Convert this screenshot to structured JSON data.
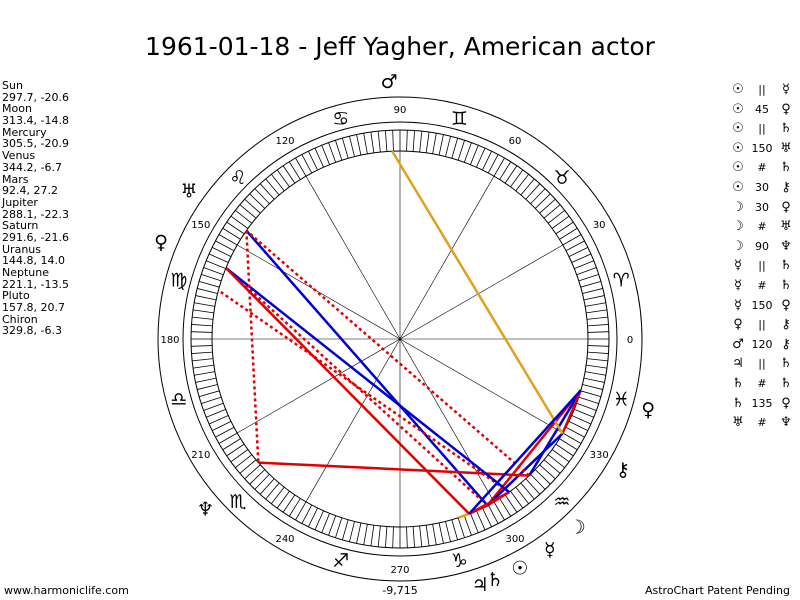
{
  "title": "1961-01-18 - Jeff Yagher, American actor",
  "footer": {
    "site": "www.harmoniclife.com",
    "harmonic_value": "-9,715",
    "credit": "AstroChart Patent Pending"
  },
  "planets": [
    {
      "name": "Sun",
      "coords": "297.7, -20.6"
    },
    {
      "name": "Moon",
      "coords": "313.4, -14.8"
    },
    {
      "name": "Mercury",
      "coords": "305.5, -20.9"
    },
    {
      "name": "Venus",
      "coords": "344.2, -6.7"
    },
    {
      "name": "Mars",
      "coords": "92.4, 27.2"
    },
    {
      "name": "Jupiter",
      "coords": "288.1, -22.3"
    },
    {
      "name": "Saturn",
      "coords": "291.6, -21.6"
    },
    {
      "name": "Uranus",
      "coords": "144.8, 14.0"
    },
    {
      "name": "Neptune",
      "coords": "221.1, -13.5"
    },
    {
      "name": "Pluto",
      "coords": "157.8, 20.7"
    },
    {
      "name": "Chiron",
      "coords": "329.8, -6.3"
    }
  ],
  "aspects": [
    {
      "p1": "☉",
      "sym": "||",
      "p2": "☿"
    },
    {
      "p1": "☉",
      "sym": "45",
      "p2": "♀"
    },
    {
      "p1": "☉",
      "sym": "||",
      "p2": "♄"
    },
    {
      "p1": "☉",
      "sym": "150",
      "p2": "♅"
    },
    {
      "p1": "☉",
      "sym": "#",
      "p2": "♄"
    },
    {
      "p1": "☉",
      "sym": "30",
      "p2": "⚷"
    },
    {
      "p1": "☽",
      "sym": "30",
      "p2": "♀"
    },
    {
      "p1": "☽",
      "sym": "#",
      "p2": "♅"
    },
    {
      "p1": "☽",
      "sym": "90",
      "p2": "♆"
    },
    {
      "p1": "☿",
      "sym": "||",
      "p2": "♄"
    },
    {
      "p1": "☿",
      "sym": "#",
      "p2": "♄"
    },
    {
      "p1": "☿",
      "sym": "150",
      "p2": "♀"
    },
    {
      "p1": "♀",
      "sym": "||",
      "p2": "⚷"
    },
    {
      "p1": "♂",
      "sym": "120",
      "p2": "⚷"
    },
    {
      "p1": "♃",
      "sym": "||",
      "p2": "♄"
    },
    {
      "p1": "♄",
      "sym": "#",
      "p2": "♄"
    },
    {
      "p1": "♄",
      "sym": "135",
      "p2": "♀"
    },
    {
      "p1": "♅",
      "sym": "#",
      "p2": "♆"
    }
  ],
  "wheel": {
    "degree_labels": [
      "0",
      "30",
      "60",
      "90",
      "120",
      "150",
      "180",
      "210",
      "240",
      "270",
      "300",
      "330"
    ],
    "signs": [
      {
        "glyph": "♈",
        "deg": 15
      },
      {
        "glyph": "♉",
        "deg": 45
      },
      {
        "glyph": "♊",
        "deg": 75
      },
      {
        "glyph": "♋",
        "deg": 105
      },
      {
        "glyph": "♌",
        "deg": 135
      },
      {
        "glyph": "♍",
        "deg": 165
      },
      {
        "glyph": "♎",
        "deg": 195
      },
      {
        "glyph": "♏",
        "deg": 225
      },
      {
        "glyph": "♐",
        "deg": 255
      },
      {
        "glyph": "♑",
        "deg": 285
      },
      {
        "glyph": "♒",
        "deg": 315
      },
      {
        "glyph": "♓",
        "deg": 345
      }
    ],
    "planet_glyphs": [
      {
        "name": "sun",
        "glyph": "☉",
        "deg": 297.7
      },
      {
        "name": "moon",
        "glyph": "☽",
        "deg": 313.4
      },
      {
        "name": "mercury",
        "glyph": "☿",
        "deg": 305.5
      },
      {
        "name": "venus",
        "glyph": "♀",
        "deg": 344.2
      },
      {
        "name": "mars",
        "glyph": "♂",
        "deg": 92.4
      },
      {
        "name": "jupiter",
        "glyph": "♃",
        "deg": 288.1
      },
      {
        "name": "saturn",
        "glyph": "♄",
        "deg": 291.6
      },
      {
        "name": "uranus",
        "glyph": "♅",
        "deg": 144.8
      },
      {
        "name": "neptune",
        "glyph": "♆",
        "deg": 221.1
      },
      {
        "name": "pluto",
        "glyph": "♀",
        "deg": 157.8
      },
      {
        "name": "chiron",
        "glyph": "⚷",
        "deg": 329.8
      }
    ],
    "aspect_lines": [
      {
        "from": 297.7,
        "to": 305.5,
        "color": "#e00000",
        "style": "solid"
      },
      {
        "from": 297.7,
        "to": 344.2,
        "color": "#e00000",
        "style": "solid"
      },
      {
        "from": 297.7,
        "to": 291.6,
        "color": "#e00000",
        "style": "solid"
      },
      {
        "from": 297.7,
        "to": 144.8,
        "color": "#0000d0",
        "style": "solid"
      },
      {
        "from": 297.7,
        "to": 157.8,
        "color": "#e00000",
        "style": "dashed"
      },
      {
        "from": 297.7,
        "to": 329.8,
        "color": "#0000d0",
        "style": "solid"
      },
      {
        "from": 313.4,
        "to": 344.2,
        "color": "#0000d0",
        "style": "solid"
      },
      {
        "from": 313.4,
        "to": 144.8,
        "color": "#e00000",
        "style": "dashed"
      },
      {
        "from": 313.4,
        "to": 221.1,
        "color": "#e00000",
        "style": "solid"
      },
      {
        "from": 305.5,
        "to": 291.6,
        "color": "#e00000",
        "style": "solid"
      },
      {
        "from": 305.5,
        "to": 165.0,
        "color": "#e00000",
        "style": "dashed"
      },
      {
        "from": 305.5,
        "to": 157.8,
        "color": "#0000d0",
        "style": "solid"
      },
      {
        "from": 344.2,
        "to": 329.8,
        "color": "#e00000",
        "style": "solid"
      },
      {
        "from": 92.4,
        "to": 329.8,
        "color": "#e0a020",
        "style": "solid"
      },
      {
        "from": 288.1,
        "to": 291.6,
        "color": "#e0a020",
        "style": "solid"
      },
      {
        "from": 291.6,
        "to": 157.8,
        "color": "#e00000",
        "style": "solid"
      },
      {
        "from": 291.6,
        "to": 344.2,
        "color": "#0000d0",
        "style": "solid"
      },
      {
        "from": 144.8,
        "to": 221.1,
        "color": "#e00000",
        "style": "dashed"
      }
    ]
  }
}
